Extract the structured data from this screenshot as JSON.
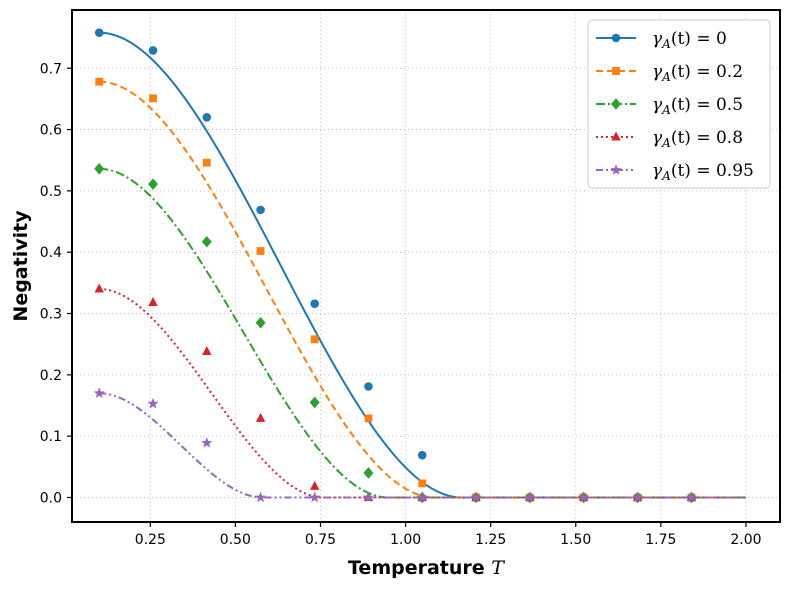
{
  "chart_data": {
    "type": "line",
    "xlabel": "Temperature",
    "xlabel_symbol": "T",
    "ylabel": "Negativity",
    "xlim": [
      0.02,
      2.1
    ],
    "ylim": [
      -0.04,
      0.795
    ],
    "xticks": [
      "0.25",
      "0.50",
      "0.75",
      "1.00",
      "1.25",
      "1.50",
      "1.75",
      "2.00"
    ],
    "yticks": [
      "0.0",
      "0.1",
      "0.2",
      "0.3",
      "0.4",
      "0.5",
      "0.6",
      "0.7"
    ],
    "grid": true,
    "legend_position": "top-right",
    "marker_x": [
      0.1,
      0.258,
      0.416,
      0.574,
      0.733,
      0.891,
      1.049,
      1.207,
      1.365,
      1.523,
      1.682,
      1.84
    ],
    "series": [
      {
        "name": "γA(t) = 0",
        "label_prefix": "γ",
        "label_sub": "A",
        "label_suffix": "(t) = 0",
        "color": "#1f77b4",
        "marker": "circle",
        "linestyle": "solid",
        "peak": 0.758,
        "cutoff": 1.165,
        "x": [
          0.1,
          0.258,
          0.416,
          0.574,
          0.733,
          0.891,
          1.049,
          1.207,
          1.365,
          1.523,
          1.682,
          1.84
        ],
        "values": [
          0.758,
          0.729,
          0.62,
          0.469,
          0.316,
          0.181,
          0.069,
          0.0,
          0.0,
          0.0,
          0.0,
          0.0
        ]
      },
      {
        "name": "γA(t) = 0.2",
        "label_prefix": "γ",
        "label_sub": "A",
        "label_suffix": "(t) = 0.2",
        "color": "#ff7f0e",
        "marker": "square",
        "linestyle": "dashed",
        "peak": 0.678,
        "cutoff": 1.085,
        "x": [
          0.1,
          0.258,
          0.416,
          0.574,
          0.733,
          0.891,
          1.049,
          1.207,
          1.365,
          1.523,
          1.682,
          1.84
        ],
        "values": [
          0.678,
          0.651,
          0.546,
          0.402,
          0.258,
          0.129,
          0.023,
          0.0,
          0.0,
          0.0,
          0.0,
          0.0
        ]
      },
      {
        "name": "γA(t) = 0.5",
        "label_prefix": "γ",
        "label_sub": "A",
        "label_suffix": "(t) = 0.5",
        "color": "#2ca02c",
        "marker": "diamond",
        "linestyle": "dashdot",
        "peak": 0.536,
        "cutoff": 0.95,
        "x": [
          0.1,
          0.258,
          0.416,
          0.574,
          0.733,
          0.891,
          1.049,
          1.207,
          1.365,
          1.523,
          1.682,
          1.84
        ],
        "values": [
          0.536,
          0.511,
          0.417,
          0.285,
          0.155,
          0.04,
          0.0,
          0.0,
          0.0,
          0.0,
          0.0,
          0.0
        ]
      },
      {
        "name": "γA(t) = 0.8",
        "label_prefix": "γ",
        "label_sub": "A",
        "label_suffix": "(t) = 0.8",
        "color": "#d62728",
        "marker": "triangle",
        "linestyle": "dotted",
        "peak": 0.34,
        "cutoff": 0.76,
        "x": [
          0.1,
          0.258,
          0.416,
          0.574,
          0.733,
          0.891,
          1.049,
          1.207,
          1.365,
          1.523,
          1.682,
          1.84
        ],
        "values": [
          0.34,
          0.318,
          0.238,
          0.129,
          0.018,
          0.0,
          0.0,
          0.0,
          0.0,
          0.0,
          0.0,
          0.0
        ]
      },
      {
        "name": "γA(t) = 0.95",
        "label_prefix": "γ",
        "label_sub": "A",
        "label_suffix": "(t) = 0.95",
        "color": "#9467bd",
        "marker": "star",
        "linestyle": "dashdotdot",
        "peak": 0.17,
        "cutoff": 0.58,
        "x": [
          0.1,
          0.258,
          0.416,
          0.574,
          0.733,
          0.891,
          1.049,
          1.207,
          1.365,
          1.523,
          1.682,
          1.84
        ],
        "values": [
          0.17,
          0.153,
          0.089,
          0.0,
          0.0,
          0.0,
          0.0,
          0.0,
          0.0,
          0.0,
          0.0,
          0.0
        ]
      }
    ]
  }
}
